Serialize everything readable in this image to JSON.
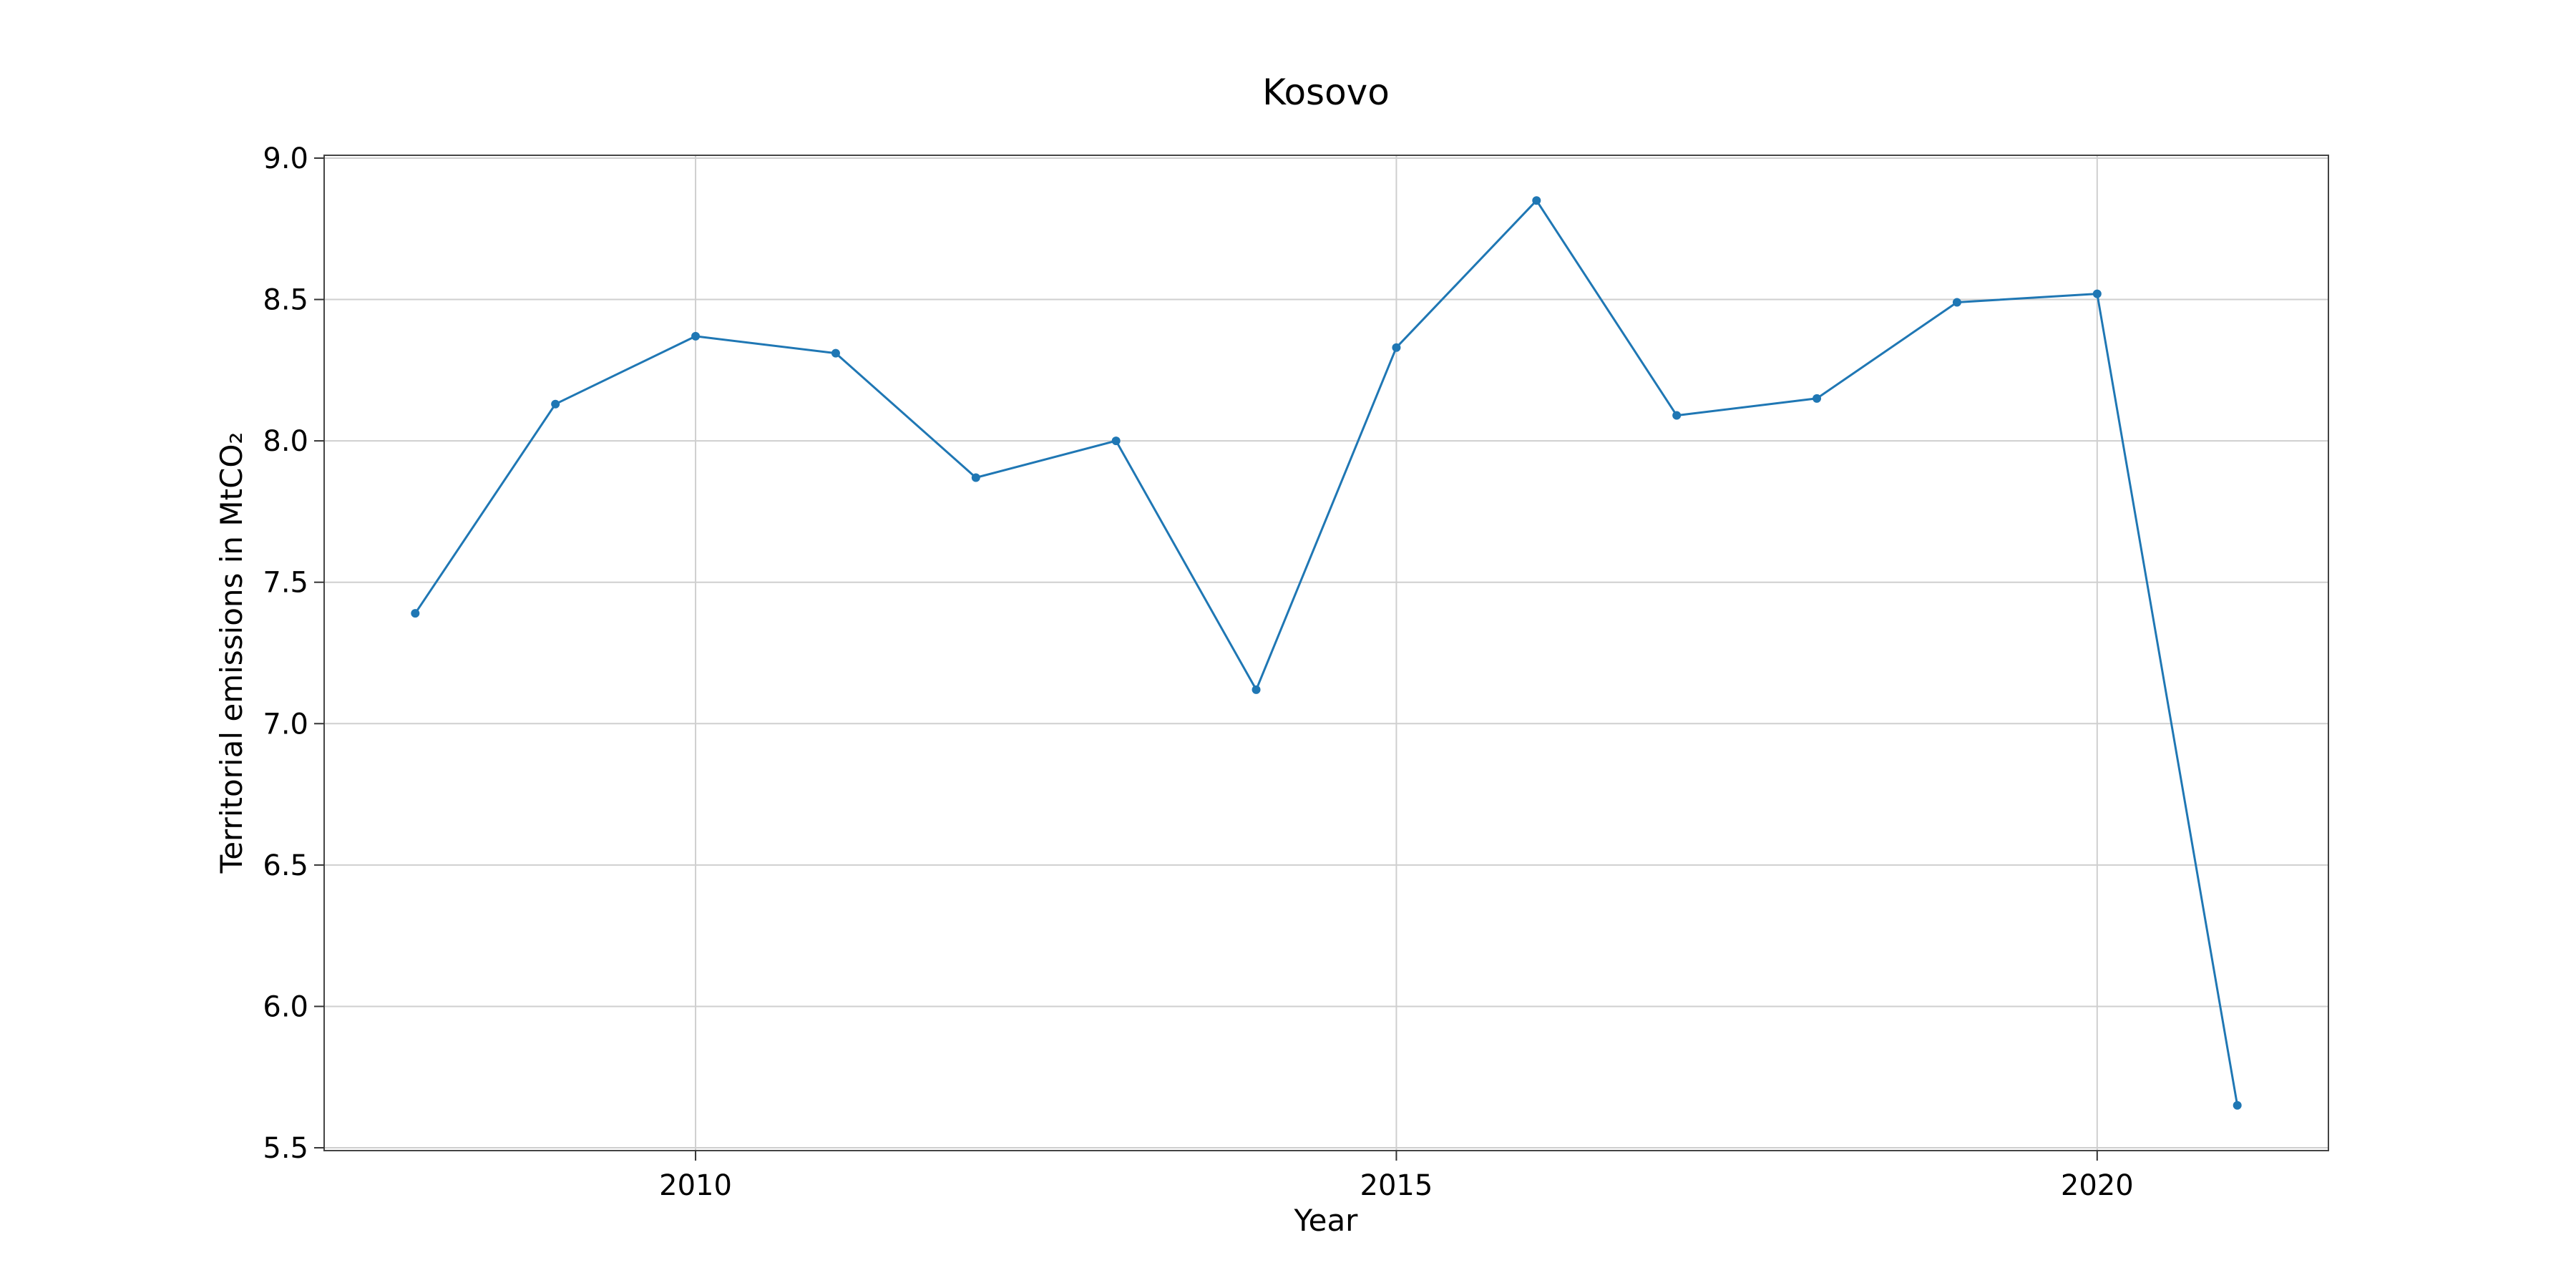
{
  "chart_data": {
    "type": "line",
    "title": "Kosovo",
    "xlabel": "Year",
    "ylabel": "Territorial emissions in MtCO₂",
    "x": [
      2008,
      2009,
      2010,
      2011,
      2012,
      2013,
      2014,
      2015,
      2016,
      2017,
      2018,
      2019,
      2020,
      2021
    ],
    "series": [
      {
        "values": [
          7.39,
          8.13,
          8.37,
          8.31,
          7.87,
          8.0,
          7.12,
          8.33,
          8.85,
          8.09,
          8.15,
          8.49,
          8.52,
          5.65
        ],
        "color": "#1f77b4"
      }
    ],
    "xlim": [
      2007.35,
      2021.65
    ],
    "ylim": [
      5.49,
      9.01
    ],
    "xticks": [
      2010,
      2015,
      2020
    ],
    "xtick_labels": [
      "2010",
      "2015",
      "2020"
    ],
    "yticks": [
      5.5,
      6.0,
      6.5,
      7.0,
      7.5,
      8.0,
      8.5,
      9.0
    ],
    "ytick_labels": [
      "5.5",
      "6.0",
      "6.5",
      "7.0",
      "7.5",
      "8.0",
      "8.5",
      "9.0"
    ],
    "grid": true,
    "legend": "none",
    "markers": true
  }
}
